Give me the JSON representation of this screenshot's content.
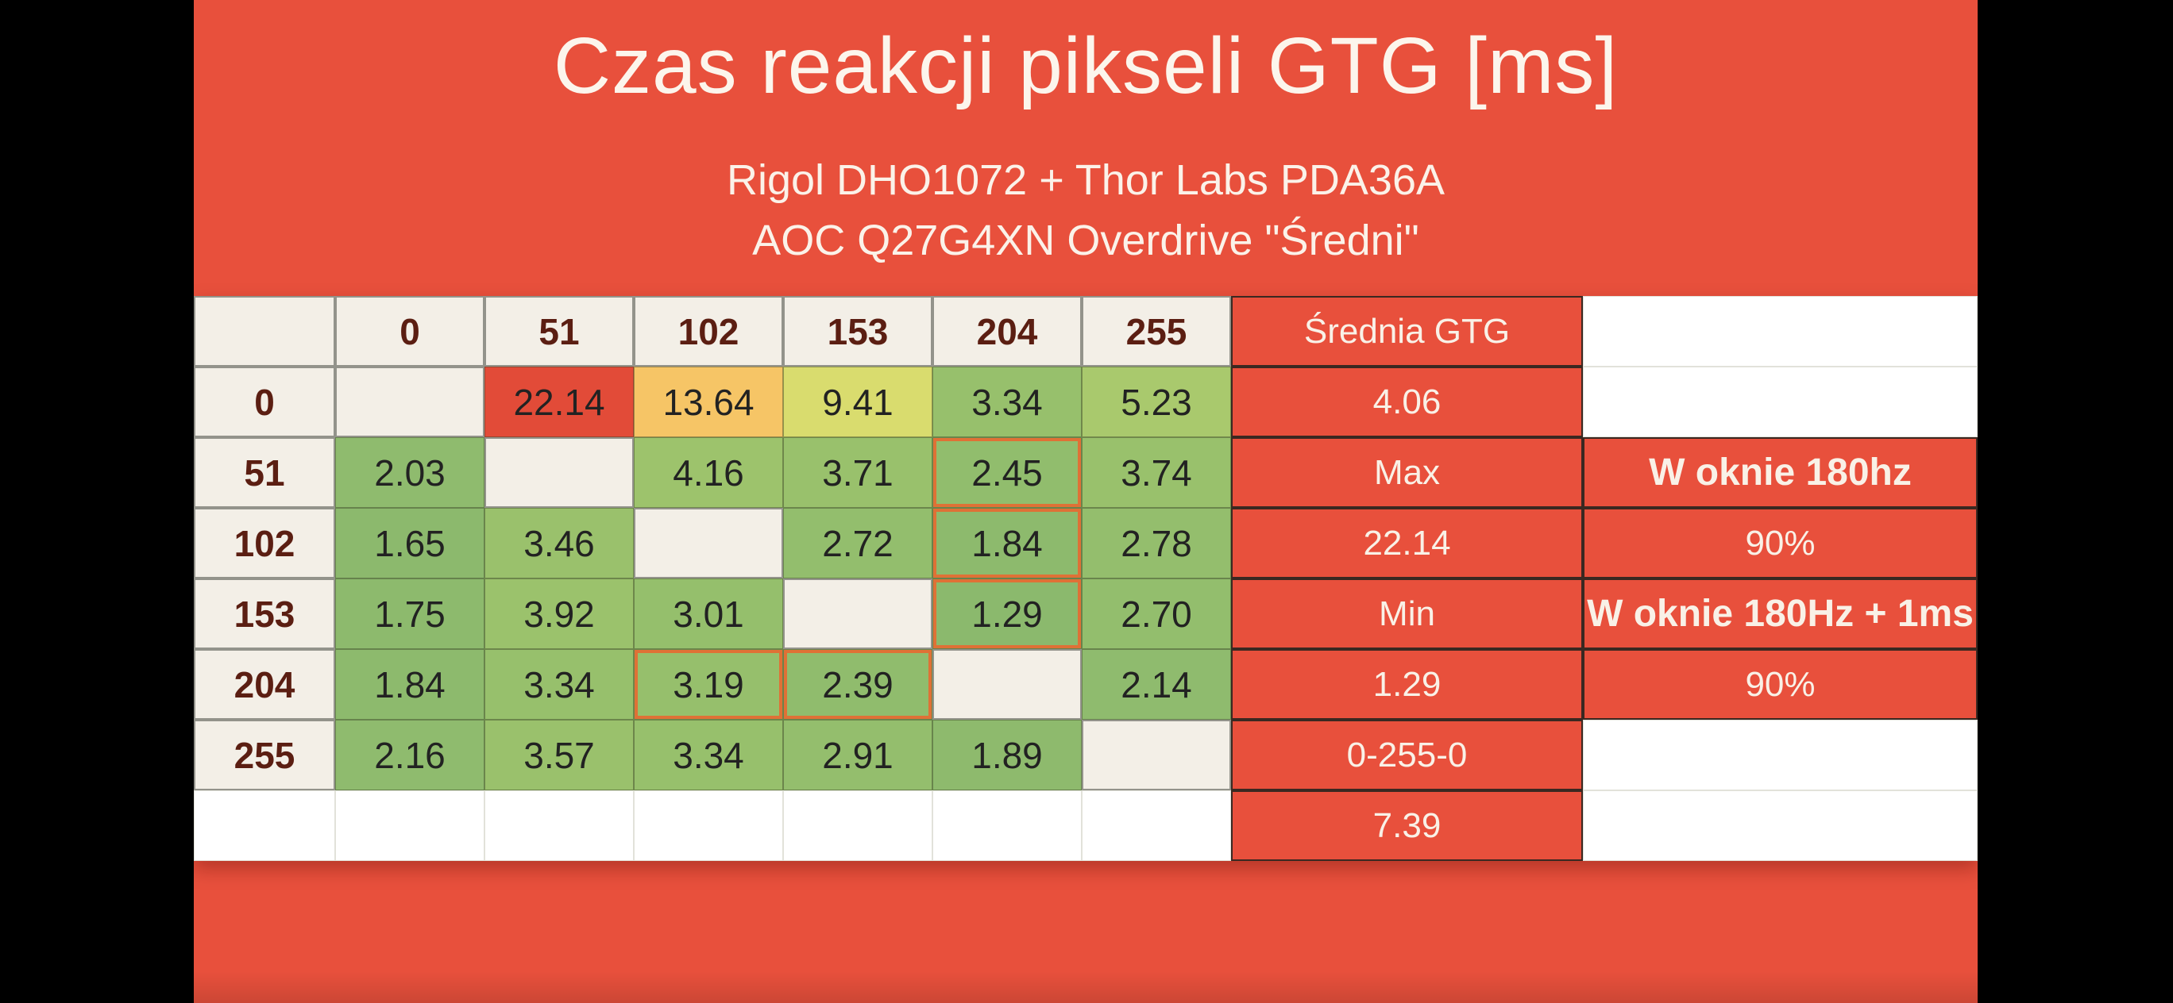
{
  "slide": {
    "title": "Czas reakcji pikseli GTG [ms]",
    "subtitle_line1": "Rigol DHO1072 + Thor Labs PDA36A",
    "subtitle_line2": "AOC Q27G4XN Overdrive \"Średni\"",
    "colors": {
      "background": "#e8503c",
      "cream_cell": "#f3efe7",
      "label_text": "#5b1e12",
      "value_text": "#222222",
      "white_text": "#f9f1e7",
      "dark_border": "#3a2821",
      "highlight_border": "#df7136"
    }
  },
  "table": {
    "corner_label": "",
    "col_headers": [
      "0",
      "51",
      "102",
      "153",
      "204",
      "255"
    ],
    "rows": [
      {
        "label": "0",
        "cells": [
          {
            "v": "",
            "c": "#f3efe7"
          },
          {
            "v": "22.14",
            "c": "#e24b38"
          },
          {
            "v": "13.64",
            "c": "#f6c566"
          },
          {
            "v": "9.41",
            "c": "#d9dc6e"
          },
          {
            "v": "3.34",
            "c": "#97c06c"
          },
          {
            "v": "5.23",
            "c": "#a9c96d"
          }
        ]
      },
      {
        "label": "51",
        "cells": [
          {
            "v": "2.03",
            "c": "#8fbb6e"
          },
          {
            "v": "",
            "c": "#f3efe7"
          },
          {
            "v": "4.16",
            "c": "#9dc36c"
          },
          {
            "v": "3.71",
            "c": "#99c16c"
          },
          {
            "v": "2.45",
            "c": "#91bd6d",
            "hl": true
          },
          {
            "v": "3.74",
            "c": "#99c16c"
          }
        ]
      },
      {
        "label": "102",
        "cells": [
          {
            "v": "1.65",
            "c": "#8cb96d"
          },
          {
            "v": "3.46",
            "c": "#9ac16c"
          },
          {
            "v": "",
            "c": "#f3efe7"
          },
          {
            "v": "2.72",
            "c": "#93be6d"
          },
          {
            "v": "1.84",
            "c": "#8dba6d",
            "hl": true
          },
          {
            "v": "2.78",
            "c": "#94be6d"
          }
        ]
      },
      {
        "label": "153",
        "cells": [
          {
            "v": "1.75",
            "c": "#8dba6d"
          },
          {
            "v": "3.92",
            "c": "#9bc26c"
          },
          {
            "v": "3.01",
            "c": "#95bf6c"
          },
          {
            "v": "",
            "c": "#f3efe7"
          },
          {
            "v": "1.29",
            "c": "#8bb96d",
            "hl": true
          },
          {
            "v": "2.70",
            "c": "#93be6d"
          }
        ]
      },
      {
        "label": "204",
        "cells": [
          {
            "v": "1.84",
            "c": "#8dba6d"
          },
          {
            "v": "3.34",
            "c": "#97c06c"
          },
          {
            "v": "3.19",
            "c": "#96bf6c",
            "hl": true
          },
          {
            "v": "2.39",
            "c": "#90bc6d",
            "hl": true
          },
          {
            "v": "",
            "c": "#f3efe7"
          },
          {
            "v": "2.14",
            "c": "#8fbb6e"
          }
        ]
      },
      {
        "label": "255",
        "cells": [
          {
            "v": "2.16",
            "c": "#8fbb6e"
          },
          {
            "v": "3.57",
            "c": "#9ac16c"
          },
          {
            "v": "3.34",
            "c": "#97c06c"
          },
          {
            "v": "2.91",
            "c": "#94be6d"
          },
          {
            "v": "1.89",
            "c": "#8eba6d"
          },
          {
            "v": "",
            "c": "#f3efe7"
          }
        ]
      }
    ],
    "stats_column": [
      "Średnia GTG",
      "4.06",
      "Max",
      "22.14",
      "Min",
      "1.29",
      "0-255-0",
      "7.39"
    ],
    "window_column": [
      {
        "text": "",
        "style": "white",
        "bold": false
      },
      {
        "text": "",
        "style": "white",
        "bold": false
      },
      {
        "text": "W oknie 180hz",
        "style": "red",
        "bold": true
      },
      {
        "text": "90%",
        "style": "red",
        "bold": false
      },
      {
        "text": "W oknie 180Hz + 1ms",
        "style": "red",
        "bold": true
      },
      {
        "text": "90%",
        "style": "red",
        "bold": false
      },
      {
        "text": "",
        "style": "white",
        "bold": false
      },
      {
        "text": "",
        "style": "white",
        "bold": false
      }
    ]
  },
  "chart_data": {
    "type": "heatmap",
    "title": "Czas reakcji pikseli GTG [ms]",
    "subtitle": [
      "Rigol DHO1072 + Thor Labs PDA36A",
      "AOC Q27G4XN Overdrive \"Średni\""
    ],
    "unit": "ms",
    "row_labels": [
      0,
      51,
      102,
      153,
      204,
      255
    ],
    "col_labels": [
      0,
      51,
      102,
      153,
      204,
      255
    ],
    "matrix": [
      [
        null,
        22.14,
        13.64,
        9.41,
        3.34,
        5.23
      ],
      [
        2.03,
        null,
        4.16,
        3.71,
        2.45,
        3.74
      ],
      [
        1.65,
        3.46,
        null,
        2.72,
        1.84,
        2.78
      ],
      [
        1.75,
        3.92,
        3.01,
        null,
        1.29,
        2.7
      ],
      [
        1.84,
        3.34,
        3.19,
        2.39,
        null,
        2.14
      ],
      [
        2.16,
        3.57,
        3.34,
        2.91,
        1.89,
        null
      ]
    ],
    "highlighted_cells": [
      [
        51,
        204
      ],
      [
        102,
        204
      ],
      [
        153,
        204
      ],
      [
        204,
        102
      ],
      [
        204,
        153
      ]
    ],
    "stats": {
      "srednia_gtg": 4.06,
      "max": 22.14,
      "min": 1.29,
      "cycle_0_255_0": 7.39,
      "w_oknie_180hz": "90%",
      "w_oknie_180hz_plus_1ms": "90%"
    },
    "color_scale": {
      "low": "#8bb96d",
      "mid": "#d9dc6e",
      "high": "#e24b38"
    },
    "legend_position": "none",
    "grid": true
  }
}
